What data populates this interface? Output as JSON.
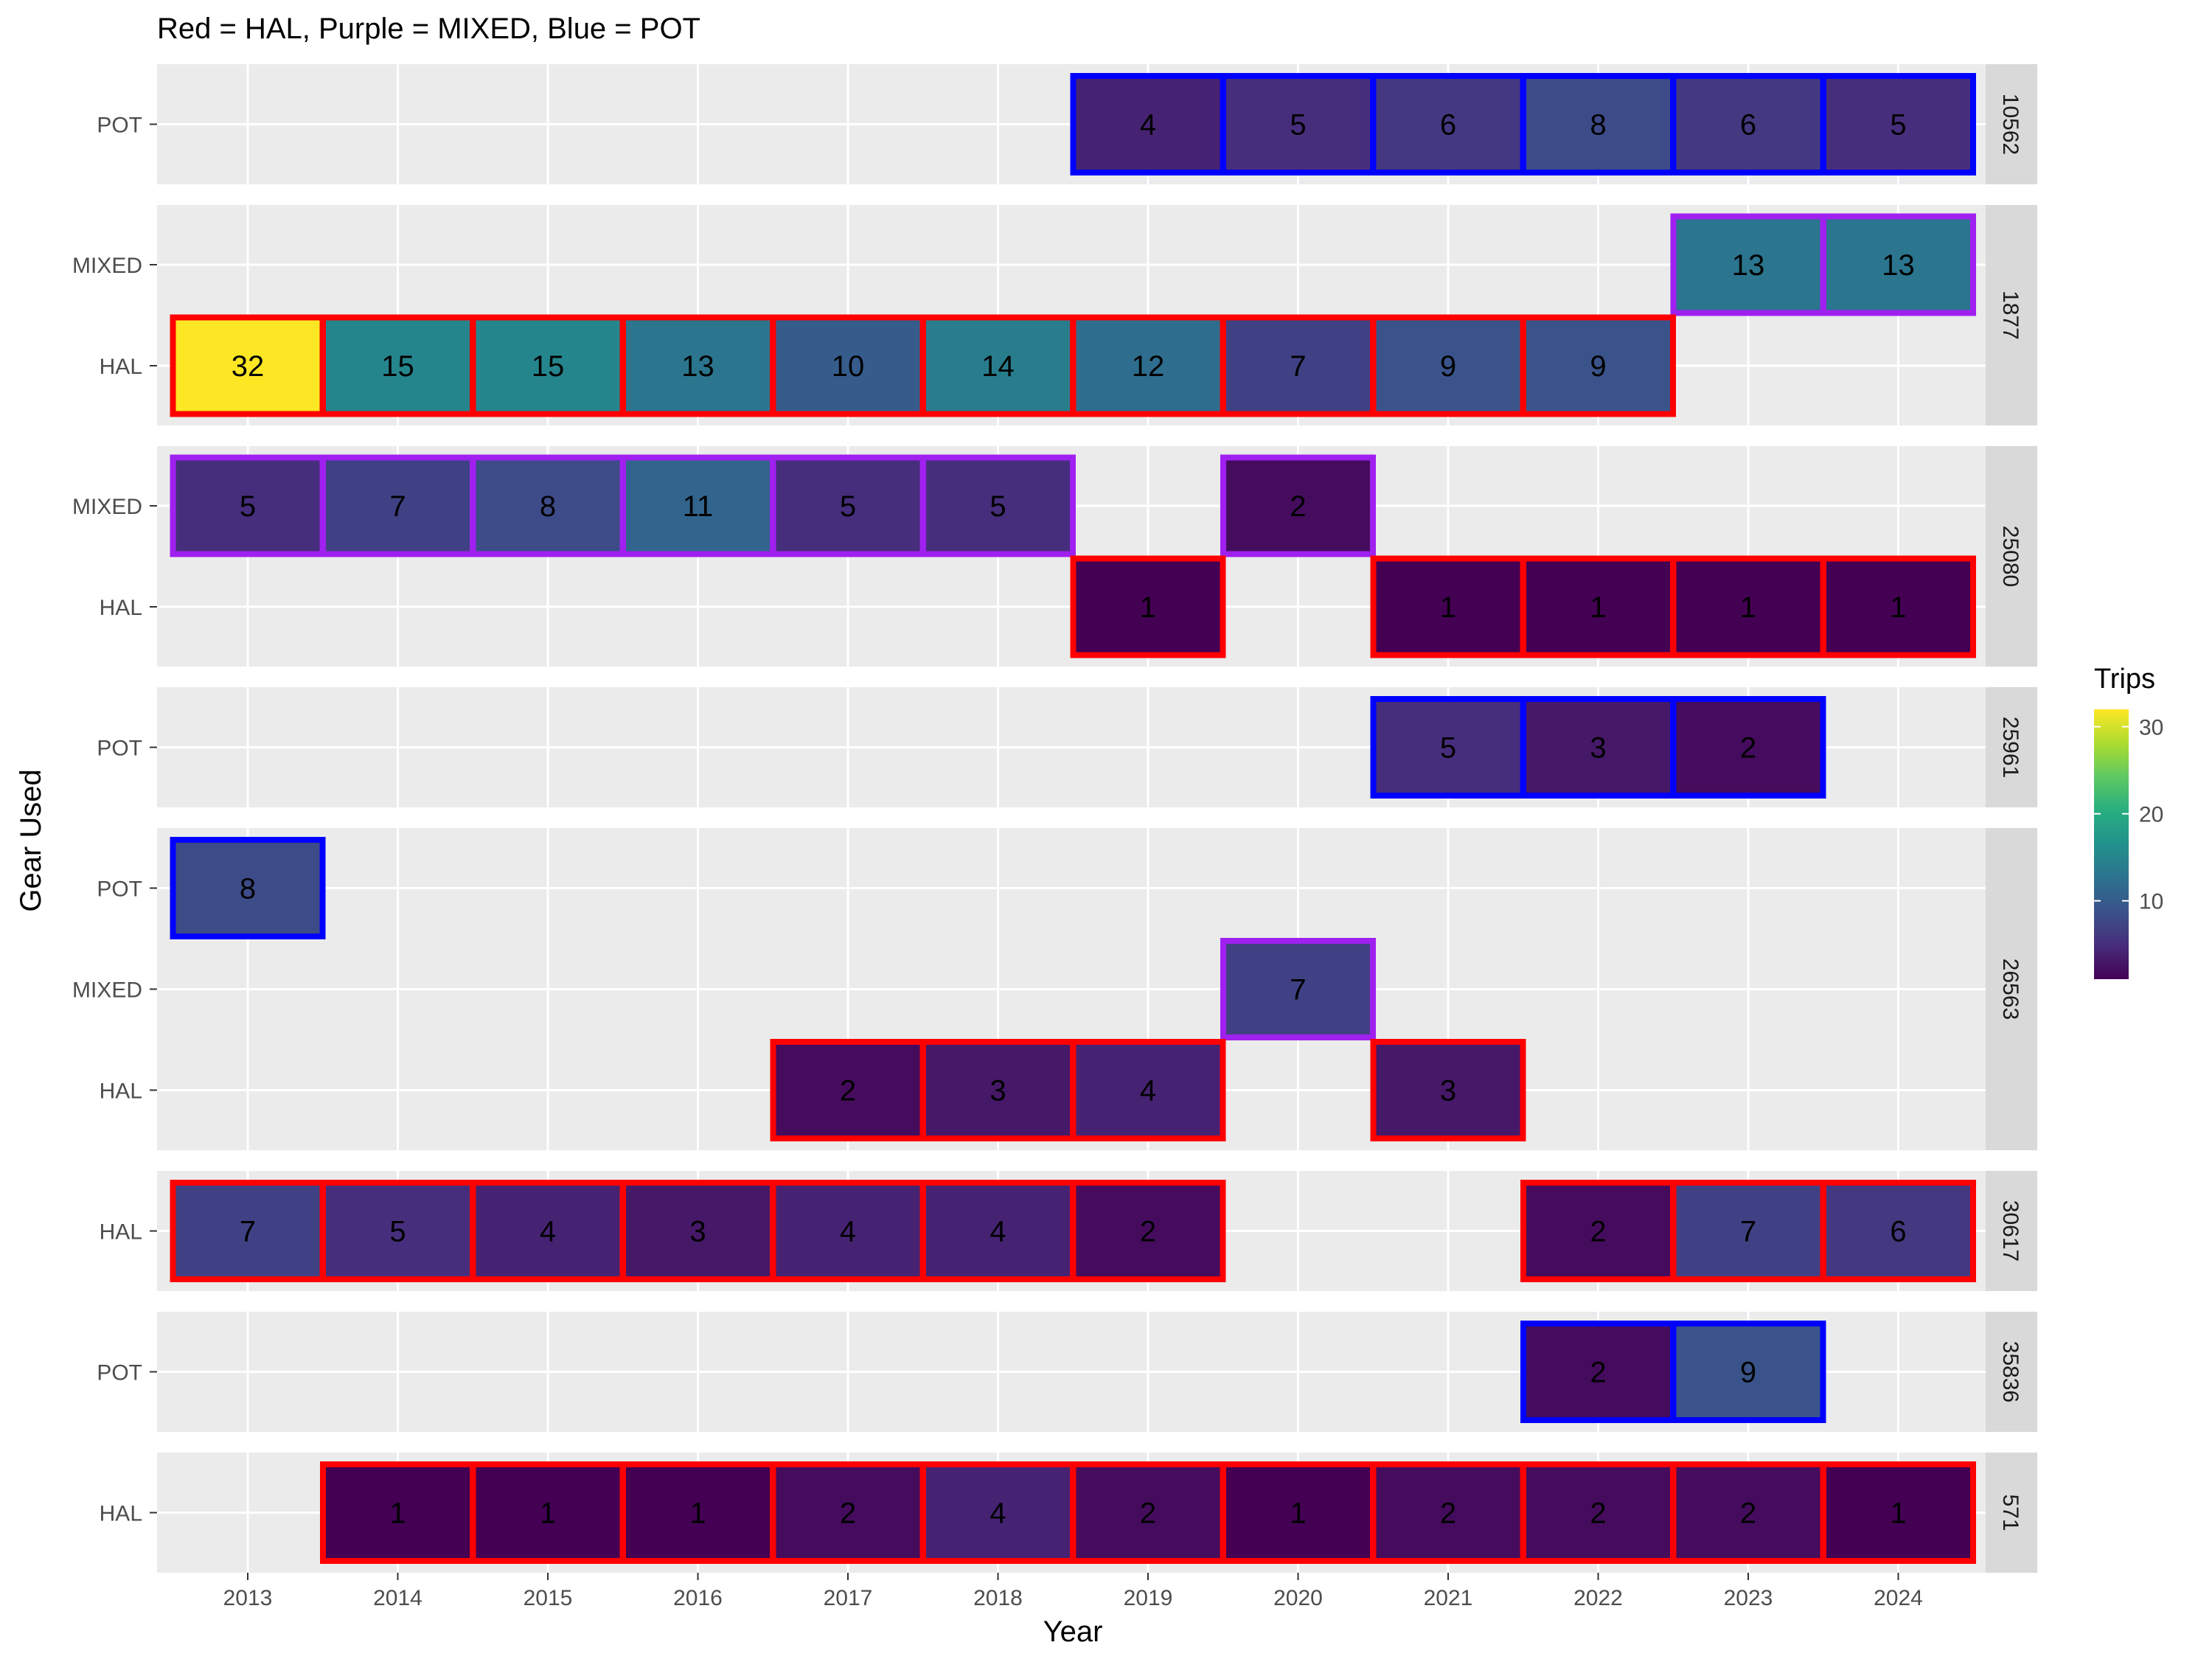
{
  "chart_data": {
    "type": "heatmap",
    "title": "Red = HAL, Purple = MIXED, Blue = POT",
    "xlabel": "Year",
    "ylabel": "Gear Used",
    "x": [
      2013,
      2014,
      2015,
      2016,
      2017,
      2018,
      2019,
      2020,
      2021,
      2022,
      2023,
      2024
    ],
    "legend": {
      "title": "Trips",
      "ticks": [
        10,
        20,
        30
      ],
      "range": [
        1,
        32
      ],
      "palette": "viridis",
      "placement": "right"
    },
    "gear_colors": {
      "HAL": "#ff0000",
      "MIXED": "#a020f0",
      "POT": "#0000ff"
    },
    "panels": [
      {
        "id": "10562",
        "gears": [
          "POT"
        ],
        "cells": [
          [
            "POT",
            2019,
            4
          ],
          [
            "POT",
            2020,
            5
          ],
          [
            "POT",
            2021,
            6
          ],
          [
            "POT",
            2022,
            8
          ],
          [
            "POT",
            2023,
            6
          ],
          [
            "POT",
            2024,
            5
          ]
        ]
      },
      {
        "id": "1877",
        "gears": [
          "MIXED",
          "HAL"
        ],
        "cells": [
          [
            "MIXED",
            2023,
            13
          ],
          [
            "MIXED",
            2024,
            13
          ],
          [
            "HAL",
            2013,
            32
          ],
          [
            "HAL",
            2014,
            15
          ],
          [
            "HAL",
            2015,
            15
          ],
          [
            "HAL",
            2016,
            13
          ],
          [
            "HAL",
            2017,
            10
          ],
          [
            "HAL",
            2018,
            14
          ],
          [
            "HAL",
            2019,
            12
          ],
          [
            "HAL",
            2020,
            7
          ],
          [
            "HAL",
            2021,
            9
          ],
          [
            "HAL",
            2022,
            9
          ]
        ]
      },
      {
        "id": "25080",
        "gears": [
          "MIXED",
          "HAL"
        ],
        "cells": [
          [
            "MIXED",
            2013,
            5
          ],
          [
            "MIXED",
            2014,
            7
          ],
          [
            "MIXED",
            2015,
            8
          ],
          [
            "MIXED",
            2016,
            11
          ],
          [
            "MIXED",
            2017,
            5
          ],
          [
            "MIXED",
            2018,
            5
          ],
          [
            "MIXED",
            2020,
            2
          ],
          [
            "HAL",
            2019,
            1
          ],
          [
            "HAL",
            2021,
            1
          ],
          [
            "HAL",
            2022,
            1
          ],
          [
            "HAL",
            2023,
            1
          ],
          [
            "HAL",
            2024,
            1
          ]
        ]
      },
      {
        "id": "25961",
        "gears": [
          "POT"
        ],
        "cells": [
          [
            "POT",
            2021,
            5
          ],
          [
            "POT",
            2022,
            3
          ],
          [
            "POT",
            2023,
            2
          ]
        ]
      },
      {
        "id": "26563",
        "gears": [
          "POT",
          "MIXED",
          "HAL"
        ],
        "cells": [
          [
            "POT",
            2013,
            8
          ],
          [
            "MIXED",
            2020,
            7
          ],
          [
            "HAL",
            2017,
            2
          ],
          [
            "HAL",
            2018,
            3
          ],
          [
            "HAL",
            2019,
            4
          ],
          [
            "HAL",
            2021,
            3
          ]
        ]
      },
      {
        "id": "30617",
        "gears": [
          "HAL"
        ],
        "cells": [
          [
            "HAL",
            2013,
            7
          ],
          [
            "HAL",
            2014,
            5
          ],
          [
            "HAL",
            2015,
            4
          ],
          [
            "HAL",
            2016,
            3
          ],
          [
            "HAL",
            2017,
            4
          ],
          [
            "HAL",
            2018,
            4
          ],
          [
            "HAL",
            2019,
            2
          ],
          [
            "HAL",
            2022,
            2
          ],
          [
            "HAL",
            2023,
            7
          ],
          [
            "HAL",
            2024,
            6
          ]
        ]
      },
      {
        "id": "35836",
        "gears": [
          "POT"
        ],
        "cells": [
          [
            "POT",
            2022,
            2
          ],
          [
            "POT",
            2023,
            9
          ]
        ]
      },
      {
        "id": "571",
        "gears": [
          "HAL"
        ],
        "cells": [
          [
            "HAL",
            2014,
            1
          ],
          [
            "HAL",
            2015,
            1
          ],
          [
            "HAL",
            2016,
            1
          ],
          [
            "HAL",
            2017,
            2
          ],
          [
            "HAL",
            2018,
            4
          ],
          [
            "HAL",
            2019,
            2
          ],
          [
            "HAL",
            2020,
            1
          ],
          [
            "HAL",
            2021,
            2
          ],
          [
            "HAL",
            2022,
            2
          ],
          [
            "HAL",
            2023,
            2
          ],
          [
            "HAL",
            2024,
            1
          ]
        ]
      }
    ]
  }
}
